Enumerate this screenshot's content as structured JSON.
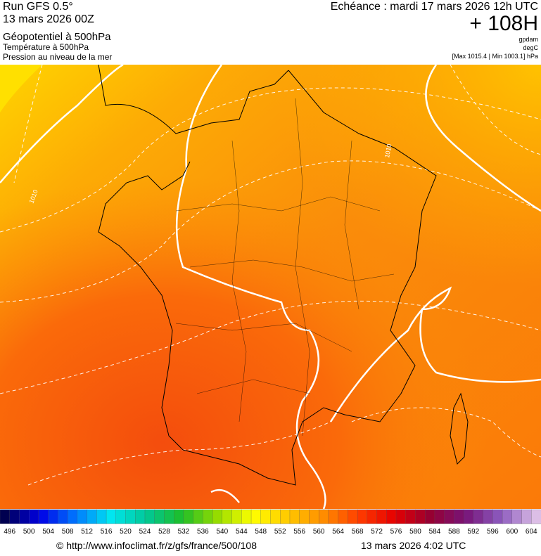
{
  "header": {
    "run": "Run GFS 0.5°",
    "run_date": "13 mars 2026 00Z",
    "line1": "Géopotentiel à 500hPa",
    "line2": "Température à 500hPa",
    "line3": "Pression au niveau de la mer",
    "valid": "Echéance : mardi 17 mars 2026 12h UTC",
    "lead": "+ 108H",
    "unit1": "gpdam",
    "unit2": "degC",
    "range": "[Max 1015.4 | Min 1003.1] hPa"
  },
  "map": {
    "isobar_labels": [
      "1010",
      "1010"
    ]
  },
  "colorbar": {
    "ticks": [
      496,
      500,
      504,
      508,
      512,
      516,
      520,
      524,
      528,
      532,
      536,
      540,
      544,
      548,
      552,
      556,
      560,
      564,
      568,
      572,
      576,
      580,
      584,
      588,
      592,
      596,
      600,
      604
    ]
  },
  "footer": {
    "source": "© http://www.infoclimat.fr/z/gfs/france/500/108",
    "date": "13 mars 2026  4:02 UTC"
  }
}
